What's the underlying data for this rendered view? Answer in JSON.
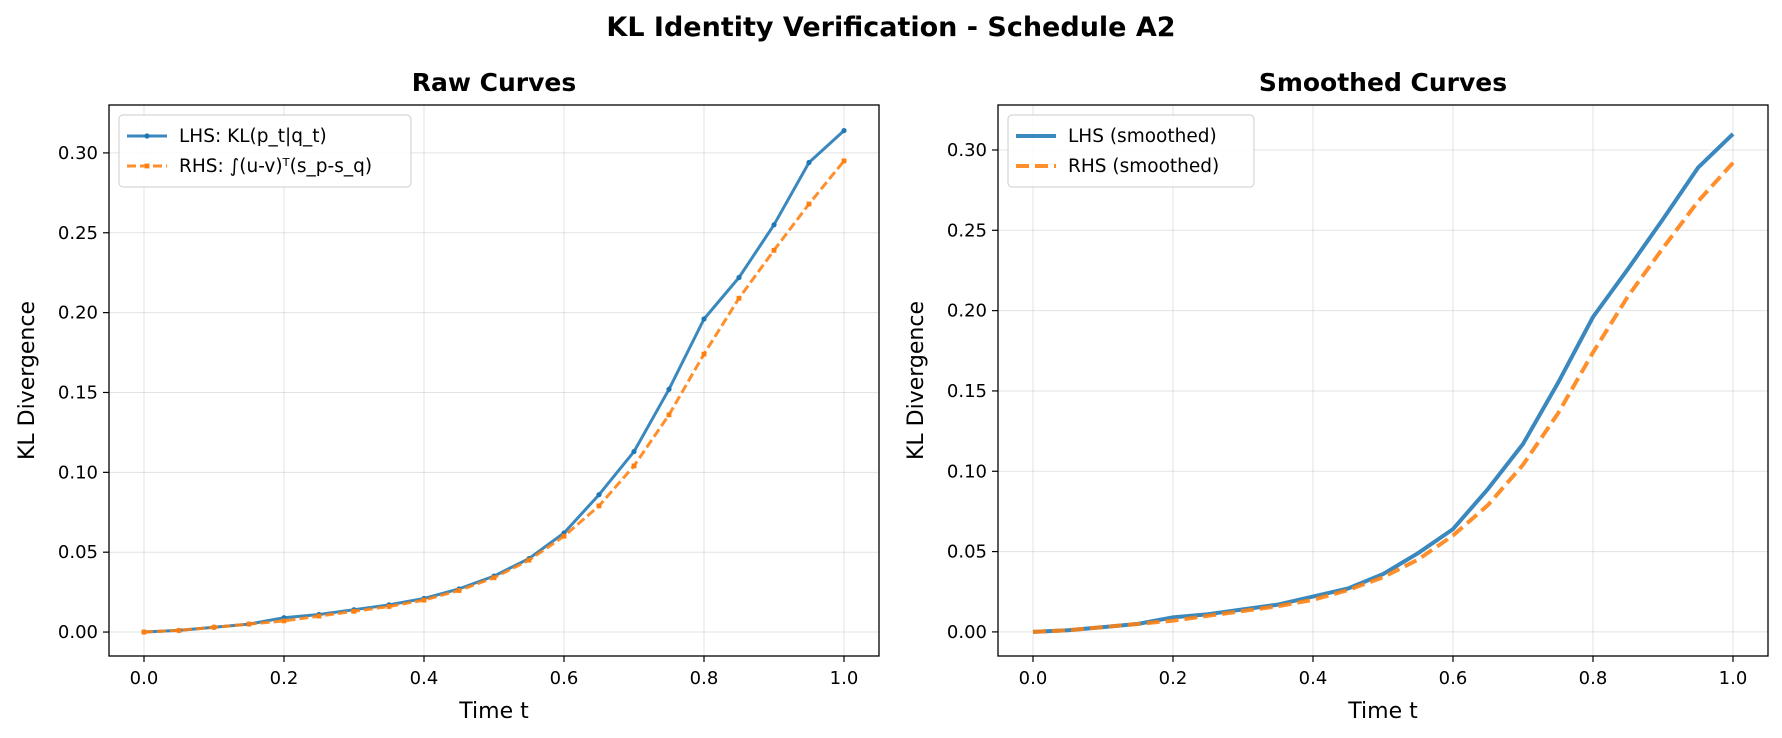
{
  "figure": {
    "title": "KL Identity Verification - Schedule A2"
  },
  "chart_data": [
    {
      "type": "line",
      "title": "Raw Curves",
      "xlabel": "Time t",
      "ylabel": "KL Divergence",
      "xlim": [
        -0.05,
        1.05
      ],
      "ylim": [
        -0.015,
        0.33
      ],
      "xticks": [
        "0.0",
        "0.2",
        "0.4",
        "0.6",
        "0.8",
        "1.0"
      ],
      "yticks": [
        "0.00",
        "0.05",
        "0.10",
        "0.15",
        "0.20",
        "0.25",
        "0.30"
      ],
      "grid": true,
      "legend_position": "top-left",
      "x": [
        0.0,
        0.05,
        0.1,
        0.15,
        0.2,
        0.25,
        0.3,
        0.35,
        0.4,
        0.45,
        0.5,
        0.55,
        0.6,
        0.65,
        0.7,
        0.75,
        0.8,
        0.85,
        0.9,
        0.95,
        1.0
      ],
      "series": [
        {
          "name": "LHS: KL(p_t|q_t)",
          "style": "solid-marker",
          "color": "#1f77b4",
          "values": [
            0.0,
            0.001,
            0.003,
            0.005,
            0.009,
            0.011,
            0.014,
            0.017,
            0.021,
            0.027,
            0.035,
            0.046,
            0.062,
            0.086,
            0.113,
            0.152,
            0.196,
            0.222,
            0.255,
            0.294,
            0.314
          ]
        },
        {
          "name": "RHS: ∫(u-v)ᵀ(s_p-s_q)",
          "style": "dashed-marker",
          "color": "#ff7f0e",
          "values": [
            0.0,
            0.001,
            0.003,
            0.005,
            0.007,
            0.01,
            0.013,
            0.016,
            0.02,
            0.026,
            0.034,
            0.045,
            0.06,
            0.079,
            0.104,
            0.136,
            0.174,
            0.209,
            0.239,
            0.268,
            0.295
          ]
        }
      ]
    },
    {
      "type": "line",
      "title": "Smoothed Curves",
      "xlabel": "Time t",
      "ylabel": "KL Divergence",
      "xlim": [
        -0.05,
        1.05
      ],
      "ylim": [
        -0.015,
        0.328
      ],
      "xticks": [
        "0.0",
        "0.2",
        "0.4",
        "0.6",
        "0.8",
        "1.0"
      ],
      "yticks": [
        "0.00",
        "0.05",
        "0.10",
        "0.15",
        "0.20",
        "0.25",
        "0.30"
      ],
      "grid": true,
      "legend_position": "top-left",
      "x": [
        0.0,
        0.05,
        0.1,
        0.15,
        0.2,
        0.25,
        0.3,
        0.35,
        0.4,
        0.45,
        0.5,
        0.55,
        0.6,
        0.65,
        0.7,
        0.75,
        0.8,
        0.85,
        0.9,
        0.95,
        1.0
      ],
      "series": [
        {
          "name": "LHS (smoothed)",
          "style": "solid",
          "color": "#1f77b4",
          "values": [
            0.0,
            0.001,
            0.003,
            0.005,
            0.009,
            0.011,
            0.014,
            0.017,
            0.022,
            0.027,
            0.036,
            0.049,
            0.064,
            0.089,
            0.117,
            0.155,
            0.196,
            0.226,
            0.257,
            0.289,
            0.31
          ]
        },
        {
          "name": "RHS (smoothed)",
          "style": "dashed",
          "color": "#ff7f0e",
          "values": [
            0.0,
            0.001,
            0.003,
            0.005,
            0.007,
            0.01,
            0.013,
            0.016,
            0.02,
            0.026,
            0.034,
            0.045,
            0.06,
            0.079,
            0.104,
            0.136,
            0.174,
            0.209,
            0.239,
            0.268,
            0.292
          ]
        }
      ]
    }
  ]
}
